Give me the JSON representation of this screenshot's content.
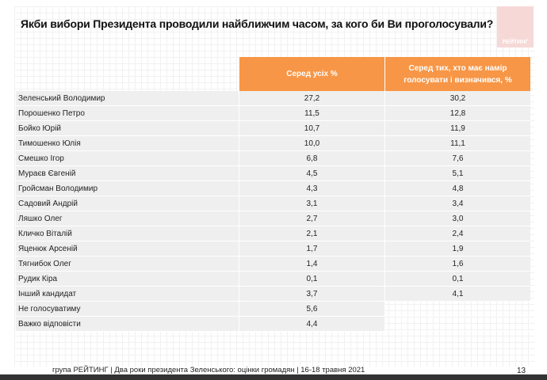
{
  "title": "Якби вибори Президента проводили найближчим часом, за кого би Ви проголосували?",
  "logo": "РЕЙТИНГ",
  "columns": [
    "Серед усіх %",
    "Серед тих, хто має намір голосувати і визначився, %"
  ],
  "rows": [
    [
      "Зеленський Володимир",
      "27,2",
      "30,2"
    ],
    [
      "Порошенко Петро",
      "11,5",
      "12,8"
    ],
    [
      "Бойко Юрій",
      "10,7",
      "11,9"
    ],
    [
      "Тимошенко Юлія",
      "10,0",
      "11,1"
    ],
    [
      "Смешко Ігор",
      "6,8",
      "7,6"
    ],
    [
      "Мураєв Євгеній",
      "4,5",
      "5,1"
    ],
    [
      "Гройсман Володимир",
      "4,3",
      "4,8"
    ],
    [
      "Садовий Андрій",
      "3,1",
      "3,4"
    ],
    [
      "Ляшко Олег",
      "2,7",
      "3,0"
    ],
    [
      "Кличко Віталій",
      "2,1",
      "2,4"
    ],
    [
      "Яценюк  Арсеній",
      "1,7",
      "1,9"
    ],
    [
      "Тягнибок Олег",
      "1,4",
      "1,6"
    ],
    [
      "Рудик Кіра",
      "0,1",
      "0,1"
    ],
    [
      "Інший кандидат",
      "3,7",
      "4,1"
    ],
    [
      "Не голосуватиму",
      "5,6",
      null
    ],
    [
      "Важко відповісти",
      "4,4",
      null
    ]
  ],
  "footer": "група РЕЙТИНГ | Два роки президента Зеленського: оцінки громадян  | 16-18 травня 2021",
  "page": "13"
}
